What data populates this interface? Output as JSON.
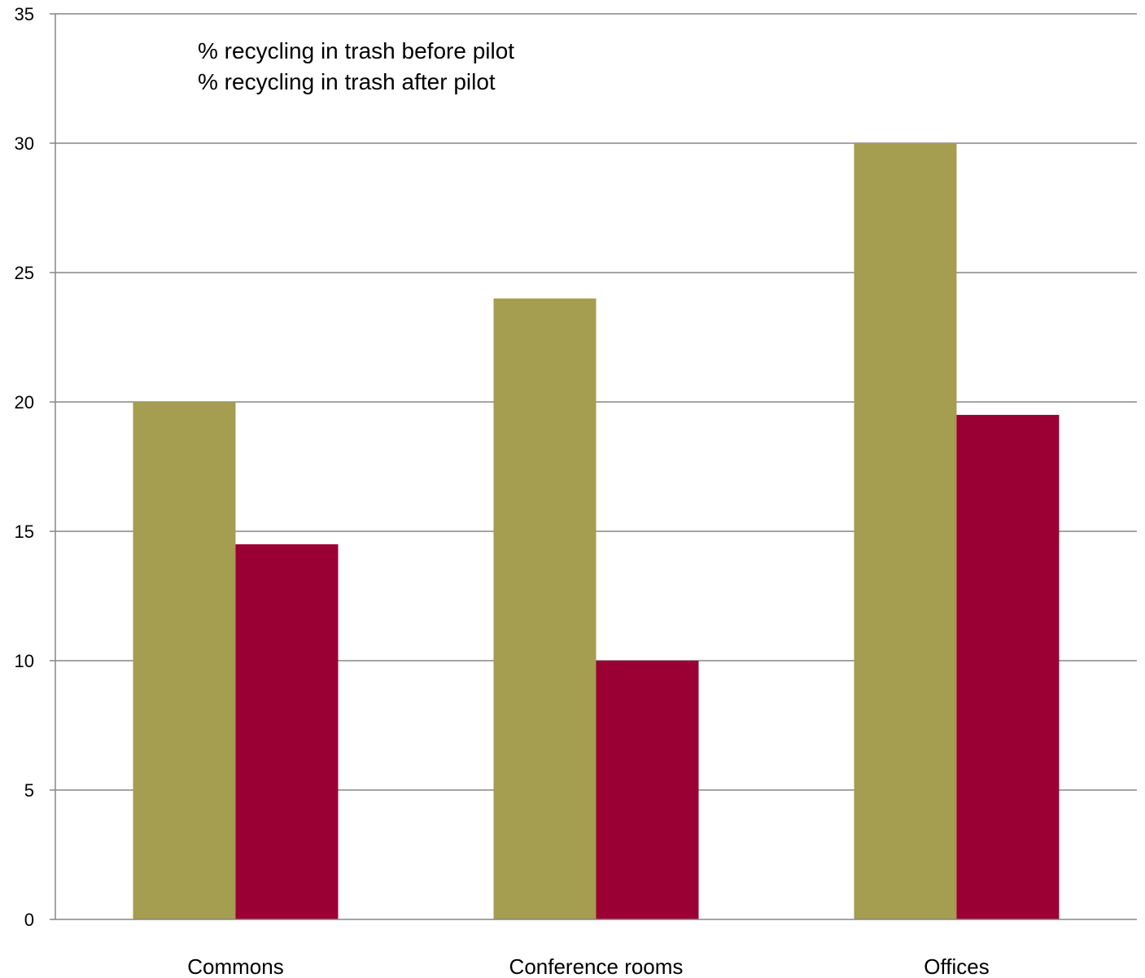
{
  "chart_data": {
    "type": "bar",
    "categories": [
      "Commons",
      "Conference rooms",
      "Offices"
    ],
    "series": [
      {
        "name": "% recycling in trash before pilot",
        "values": [
          20,
          24,
          30
        ],
        "color": "#A59D50"
      },
      {
        "name": "% recycling in trash after pilot",
        "values": [
          14.5,
          10,
          19.5
        ],
        "color": "#9B0034"
      }
    ],
    "title": "",
    "xlabel": "",
    "ylabel": "",
    "ylim": [
      0,
      35
    ],
    "y_ticks": [
      0,
      5,
      10,
      15,
      20,
      25,
      30,
      35
    ],
    "grid": true,
    "legend_position": "top-left",
    "legend_swatches_shown": false,
    "gridline_color": "#868686",
    "axis_color": "#868686"
  }
}
